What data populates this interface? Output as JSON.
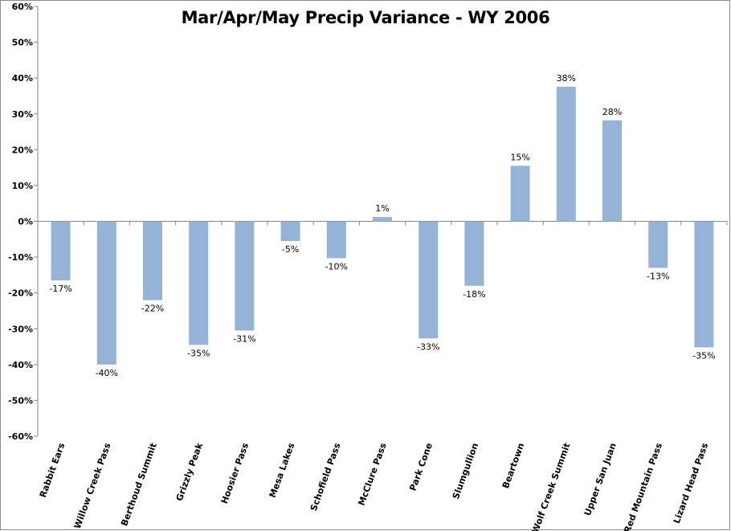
{
  "chart_data": {
    "type": "bar",
    "title": "Mar/Apr/May Precip Variance - WY 2006",
    "xlabel": "",
    "ylabel": "",
    "ylim": [
      -60,
      60
    ],
    "y_ticks": [
      60,
      50,
      40,
      30,
      20,
      10,
      0,
      -10,
      -20,
      -30,
      -40,
      -50,
      -60
    ],
    "y_tick_format": "percent",
    "grid": false,
    "bar_color": "#95b3d7",
    "categories": [
      "Rabbit Ears",
      "Willow Creek Pass",
      "Berthoud Summit",
      "Grizzly Peak",
      "Hoosier Pass",
      "Mesa Lakes",
      "Schofield Pass",
      "McClure Pass",
      "Park Cone",
      "Slumgullion",
      "Beartown",
      "Wolf Creek Summit",
      "Upper San Juan",
      "Red Mountain Pass",
      "Lizard Head Pass"
    ],
    "values": [
      -16.5,
      -40,
      -22,
      -34.5,
      -30.5,
      -5.5,
      -10.3,
      1.2,
      -32.7,
      -18,
      15.5,
      37.6,
      28.2,
      -13,
      -35.2
    ],
    "data_labels": [
      "-17%",
      "-40%",
      "-22%",
      "-35%",
      "-31%",
      "-5%",
      "-10%",
      "1%",
      "-33%",
      "-18%",
      "15%",
      "38%",
      "28%",
      "-13%",
      "-35%"
    ]
  }
}
